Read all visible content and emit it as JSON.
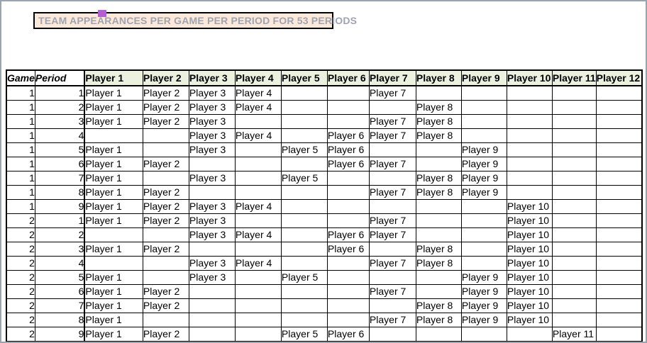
{
  "title": {
    "text": "TEAM APPEARANCES PER GAME PER PERIOD FOR 53 PERIODS",
    "bg_color": "#fde9d9",
    "text_color": "#9fa4b2",
    "border_color": "#000000",
    "marker_icon": "selection-handle",
    "marker_color": "#b55ed3"
  },
  "table": {
    "corner_headers": [
      "Game",
      "Period"
    ],
    "player_columns": [
      "Player 1",
      "Player 2",
      "Player 3",
      "Player 4",
      "Player 5",
      "Player 6",
      "Player 7",
      "Player 8",
      "Player 9",
      "Player 10",
      "Player 11",
      "Player 12"
    ],
    "header_bg": "#ebf1de",
    "grid_color": "#000000",
    "rows": [
      {
        "game": 1,
        "period": 1,
        "cells": [
          "Player 1",
          "Player 2",
          "Player 3",
          "Player 4",
          "",
          "",
          "Player 7",
          "",
          "",
          "",
          "",
          ""
        ]
      },
      {
        "game": 1,
        "period": 2,
        "cells": [
          "Player 1",
          "Player 2",
          "Player 3",
          "Player 4",
          "",
          "",
          "",
          "Player 8",
          "",
          "",
          "",
          ""
        ]
      },
      {
        "game": 1,
        "period": 3,
        "cells": [
          "Player 1",
          "Player 2",
          "Player 3",
          "",
          "",
          "",
          "Player 7",
          "Player 8",
          "",
          "",
          "",
          ""
        ]
      },
      {
        "game": 1,
        "period": 4,
        "cells": [
          "",
          "",
          "Player 3",
          "Player 4",
          "",
          "Player 6",
          "Player 7",
          "Player 8",
          "",
          "",
          "",
          ""
        ]
      },
      {
        "game": 1,
        "period": 5,
        "cells": [
          "Player 1",
          "",
          "Player 3",
          "",
          "Player 5",
          "Player 6",
          "",
          "",
          "Player 9",
          "",
          "",
          ""
        ]
      },
      {
        "game": 1,
        "period": 6,
        "cells": [
          "Player 1",
          "Player 2",
          "",
          "",
          "",
          "Player 6",
          "Player 7",
          "",
          "Player 9",
          "",
          "",
          ""
        ]
      },
      {
        "game": 1,
        "period": 7,
        "cells": [
          "Player 1",
          "",
          "Player 3",
          "",
          "Player 5",
          "",
          "",
          "Player 8",
          "Player 9",
          "",
          "",
          ""
        ]
      },
      {
        "game": 1,
        "period": 8,
        "cells": [
          "Player 1",
          "Player 2",
          "",
          "",
          "",
          "",
          "Player 7",
          "Player 8",
          "Player 9",
          "",
          "",
          ""
        ]
      },
      {
        "game": 1,
        "period": 9,
        "cells": [
          "Player 1",
          "Player 2",
          "Player 3",
          "Player 4",
          "",
          "",
          "",
          "",
          "",
          "Player 10",
          "",
          ""
        ]
      },
      {
        "game": 2,
        "period": 1,
        "cells": [
          "Player 1",
          "Player 2",
          "Player 3",
          "",
          "",
          "",
          "Player 7",
          "",
          "",
          "Player 10",
          "",
          ""
        ]
      },
      {
        "game": 2,
        "period": 2,
        "cells": [
          "",
          "",
          "Player 3",
          "Player 4",
          "",
          "Player 6",
          "Player 7",
          "",
          "",
          "Player 10",
          "",
          ""
        ]
      },
      {
        "game": 2,
        "period": 3,
        "cells": [
          "Player 1",
          "Player 2",
          "",
          "",
          "",
          "Player 6",
          "",
          "Player 8",
          "",
          "Player 10",
          "",
          ""
        ]
      },
      {
        "game": 2,
        "period": 4,
        "cells": [
          "",
          "",
          "Player 3",
          "Player 4",
          "",
          "",
          "Player 7",
          "Player 8",
          "",
          "Player 10",
          "",
          ""
        ]
      },
      {
        "game": 2,
        "period": 5,
        "cells": [
          "Player 1",
          "",
          "Player 3",
          "",
          "Player 5",
          "",
          "",
          "",
          "Player 9",
          "Player 10",
          "",
          ""
        ]
      },
      {
        "game": 2,
        "period": 6,
        "cells": [
          "Player 1",
          "Player 2",
          "",
          "",
          "",
          "",
          "Player 7",
          "",
          "Player 9",
          "Player 10",
          "",
          ""
        ]
      },
      {
        "game": 2,
        "period": 7,
        "cells": [
          "Player 1",
          "Player 2",
          "",
          "",
          "",
          "",
          "",
          "Player 8",
          "Player 9",
          "Player 10",
          "",
          ""
        ]
      },
      {
        "game": 2,
        "period": 8,
        "cells": [
          "Player 1",
          "",
          "",
          "",
          "",
          "",
          "Player 7",
          "Player 8",
          "Player 9",
          "Player 10",
          "",
          ""
        ]
      },
      {
        "game": 2,
        "period": 9,
        "cells": [
          "Player 1",
          "Player 2",
          "",
          "",
          "Player 5",
          "Player 6",
          "",
          "",
          "",
          "",
          "Player 11",
          ""
        ]
      }
    ]
  }
}
